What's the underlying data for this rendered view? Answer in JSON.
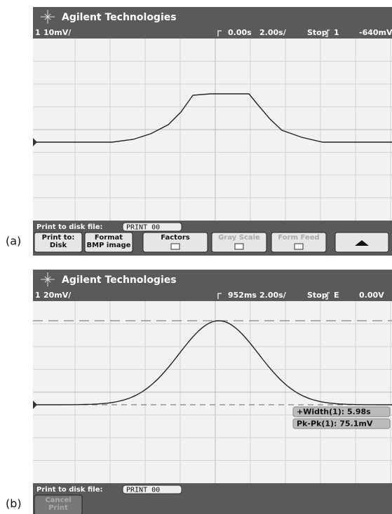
{
  "panels": [
    {
      "label": "(a)",
      "brand": "Agilent Technologies",
      "status": {
        "channel": "1",
        "scale": "10mV/",
        "delay": "0.00s",
        "timebase": "2.00s/",
        "run_state": "Stop",
        "trigger_source": "1",
        "trigger_level": "-640mV"
      },
      "print_file_label": "Print to disk file:",
      "print_file_name": "PRINT_00",
      "softkeys": [
        [
          "Print to:",
          "Disk"
        ],
        [
          "Format",
          "BMP image"
        ],
        [
          "Factors"
        ],
        [
          "Gray Scale"
        ],
        [
          "Form Feed"
        ]
      ]
    },
    {
      "label": "(b)",
      "brand": "Agilent Technologies",
      "status": {
        "channel": "1",
        "scale": "20mV/",
        "delay": "952ms",
        "timebase": "2.00s/",
        "run_state": "Stop",
        "trigger_source": "E",
        "trigger_level": "0.00V"
      },
      "measurements": [
        "+Width(1): 5.98s",
        "Pk-Pk(1): 75.1mV"
      ],
      "print_file_label": "Print to disk file:",
      "print_file_name": "PRINT_00",
      "softkeys": [
        [
          "Cancel",
          "Print"
        ]
      ]
    }
  ]
}
